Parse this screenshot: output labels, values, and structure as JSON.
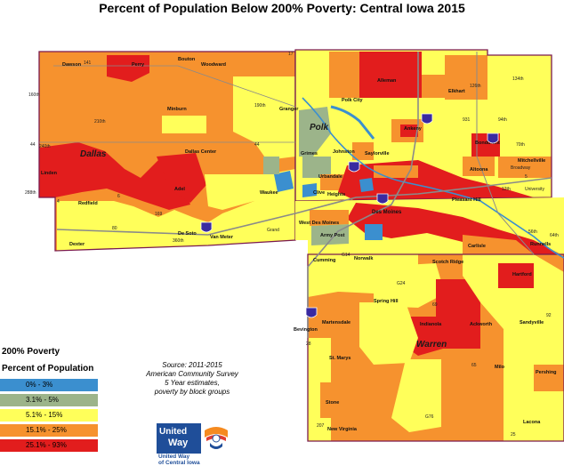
{
  "title": "Percent of Population Below 200% Poverty: Central Iowa 2015",
  "colors": {
    "band_0_3": "#3b8fcf",
    "band_3_5": "#9cb48a",
    "band_5_15": "#ffff5a",
    "band_15_25": "#f6922e",
    "band_25_93": "#e21d1d",
    "county_border": "#7a1a4f",
    "highway": "#8a8a8a",
    "water": "#3b8fcf"
  },
  "legend": {
    "title_line1": "200% Poverty",
    "title_line2": "Percent of Population",
    "items": [
      {
        "label": "0% - 3%",
        "color": "#3b8fcf"
      },
      {
        "label": "3.1% - 5%",
        "color": "#9cb48a"
      },
      {
        "label": "5.1% - 15%",
        "color": "#ffff5a"
      },
      {
        "label": "15.1% - 25%",
        "color": "#f6922e"
      },
      {
        "label": "25.1% - 93%",
        "color": "#e21d1d"
      }
    ]
  },
  "source": {
    "line1": "Source: 2011-2015",
    "line2": "American Community Survey",
    "line3": "5 Year estimates,",
    "line4": "poverty by block groups"
  },
  "logo": {
    "line1": "United",
    "line2": "Way",
    "caption1": "United Way",
    "caption2": "of Central Iowa"
  },
  "counties": {
    "dallas": "Dallas",
    "polk": "Polk",
    "warren": "Warren"
  },
  "places": {
    "dawson": "Dawson",
    "perry": "Perry",
    "bouton": "Bouton",
    "woodward": "Woodward",
    "minburn": "Minburn",
    "granger": "Granger",
    "dallas_center": "Dallas Center",
    "linden": "Linden",
    "redfield": "Redfield",
    "adel": "Adel",
    "waukee": "Waukee",
    "de_soto": "De Soto",
    "van_meter": "Van Meter",
    "dexter": "Dexter",
    "polk_city": "Polk City",
    "alleman": "Alleman",
    "elkhart": "Elkhart",
    "ankeny": "Ankeny",
    "bondurant": "Bondurant",
    "altoona": "Altoona",
    "mitchellville": "Mitchellville",
    "saylorville": "Saylorville",
    "johnston": "Johnston",
    "grimes": "Grimes",
    "urbandale": "Urbandale",
    "clive": "Clive",
    "windsor_heights": "Heights",
    "des_moines": "Des Moines",
    "pleasant_hill": "Pleasant Hill",
    "west_des_moines": "West Des Moines",
    "army_post": "Army Post",
    "carlisle": "Carlisle",
    "runnells": "Runnells",
    "cumming": "Cumming",
    "norwalk": "Norwalk",
    "scotch_ridge": "Scotch Ridge",
    "hartford": "Hartford",
    "spring_hill": "Spring Hill",
    "martensdale": "Martensdale",
    "indianola": "Indianola",
    "ackworth": "Ackworth",
    "sandyville": "Sandyville",
    "bevington": "Bevington",
    "st_marys": "St. Marys",
    "milo": "Milo",
    "stone": "Stone",
    "new_virginia": "New Virginia",
    "lacona": "Lacona",
    "pershing": "Pershing",
    "broadway": "Broadway",
    "university": "University"
  },
  "roads": {
    "r141": "141",
    "r160th": "160th",
    "r190th": "190th",
    "r210th": "210th",
    "r240th": "240th",
    "r44": "44",
    "r6": "6",
    "r169": "169",
    "r80": "80",
    "r360th": "360th",
    "r288th": "288th",
    "r4": "4",
    "r17": "17",
    "grand": "Grand",
    "r65": "65",
    "r69": "69",
    "r5": "5",
    "r28": "28",
    "r92": "92",
    "g14": "G14",
    "g24": "G24",
    "g76": "G76",
    "r207": "207",
    "r25": "25",
    "r126th": "126th",
    "r134th": "134th",
    "r931": "931",
    "r94th": "94th",
    "r70th": "70th",
    "r64th": "64th",
    "r56th": "56th",
    "r12th": "12th"
  }
}
